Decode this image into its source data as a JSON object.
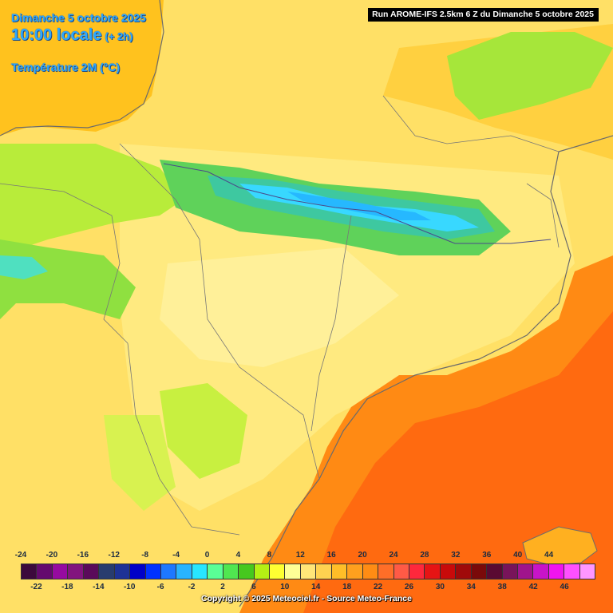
{
  "header": {
    "date": "Dimanche 5 octobre 2025",
    "time": "10:00 locale",
    "offset": "(+ 2h)",
    "parameter": "Température 2M (°C)"
  },
  "run_banner": "Run AROME-IFS 2.5km 6 Z du Dimanche 5 octobre 2025",
  "legend": {
    "top_ticks": [
      "-24",
      "-20",
      "-16",
      "-12",
      "-8",
      "-4",
      "0",
      "4",
      "8",
      "12",
      "16",
      "20",
      "24",
      "28",
      "32",
      "36",
      "40",
      "44"
    ],
    "bottom_ticks": [
      "-22",
      "-18",
      "-14",
      "-10",
      "-6",
      "-2",
      "2",
      "6",
      "10",
      "14",
      "18",
      "22",
      "26",
      "30",
      "34",
      "38",
      "42",
      "46"
    ],
    "colors": [
      "#3c0a3c",
      "#640a6e",
      "#960aa0",
      "#82147e",
      "#5a0a5a",
      "#283c6e",
      "#1e3296",
      "#0000c8",
      "#0032ff",
      "#1e78ff",
      "#28b4ff",
      "#28e6ff",
      "#5aff96",
      "#50e650",
      "#46c81e",
      "#b4f014",
      "#ffff32",
      "#ffff96",
      "#ffe678",
      "#ffd250",
      "#ffbe28",
      "#ffa01e",
      "#ff8c14",
      "#ff6e28",
      "#ff5a46",
      "#ff283c",
      "#e61414",
      "#c80a0a",
      "#a00a0a",
      "#7a0a0a",
      "#5a0a32",
      "#78145a",
      "#a0148c",
      "#c814c8",
      "#f014f0",
      "#ff50ff",
      "#ff96ff"
    ]
  },
  "copyright": "Copyright © 2025 Meteociel.fr - Source Meteo-France"
}
